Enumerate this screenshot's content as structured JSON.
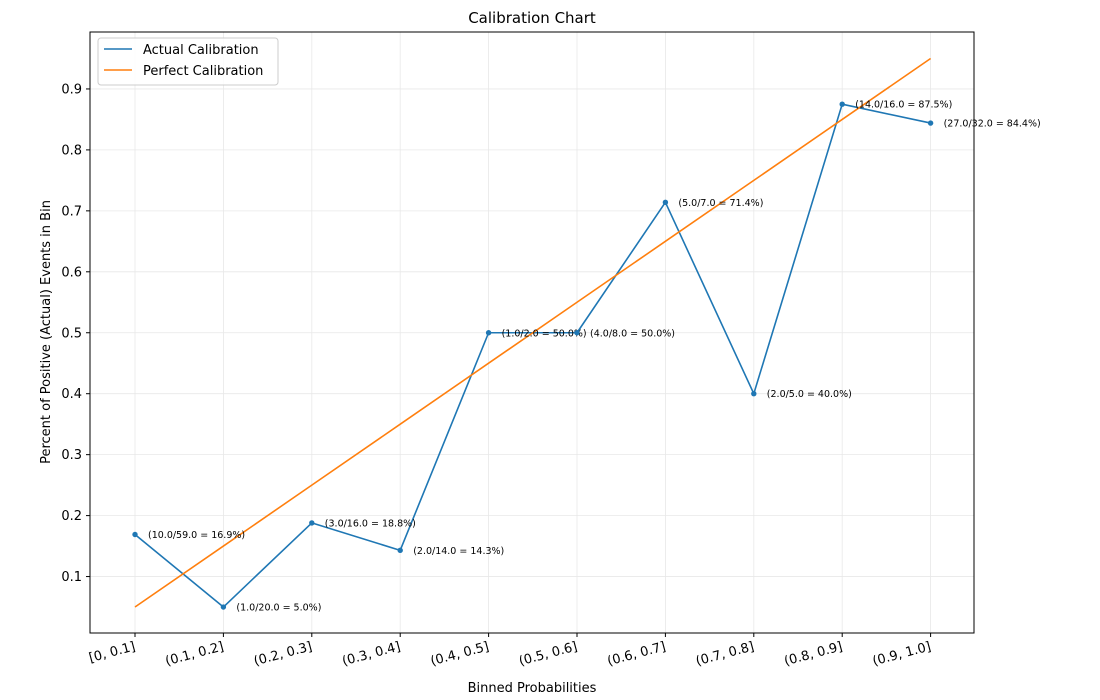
{
  "chart_data": {
    "type": "line",
    "title": "Calibration Chart",
    "xlabel": "Binned Probabilities",
    "ylabel": "Percent of Positive (Actual) Events in Bin",
    "categories": [
      "[0, 0.1]",
      "(0.1, 0.2]",
      "(0.2, 0.3]",
      "(0.3, 0.4]",
      "(0.4, 0.5]",
      "(0.5, 0.6]",
      "(0.6, 0.7]",
      "(0.7, 0.8]",
      "(0.8, 0.9]",
      "(0.9, 1.0]"
    ],
    "ylim": [
      0.0,
      1.0
    ],
    "yticks": [
      "0.1",
      "0.2",
      "0.3",
      "0.4",
      "0.5",
      "0.6",
      "0.7",
      "0.8",
      "0.9"
    ],
    "grid": true,
    "legend_position": "top-left",
    "series": [
      {
        "name": "Actual Calibration",
        "color": "#1f77b4",
        "markers": true,
        "values": [
          0.169,
          0.05,
          0.188,
          0.143,
          0.5,
          0.5,
          0.714,
          0.4,
          0.875,
          0.844
        ],
        "labels": [
          "(10.0/59.0 = 16.9%)",
          "(1.0/20.0 = 5.0%)",
          "(3.0/16.0 = 18.8%)",
          "(2.0/14.0 = 14.3%)",
          "(1.0/2.0 = 50.0%)",
          "(4.0/8.0 = 50.0%)",
          "(5.0/7.0 = 71.4%)",
          "(2.0/5.0 = 40.0%)",
          "(14.0/16.0 = 87.5%)",
          "(27.0/32.0 = 84.4%)"
        ]
      },
      {
        "name": "Perfect Calibration",
        "color": "#ff7f0e",
        "markers": false,
        "values": [
          0.05,
          0.15,
          0.25,
          0.35,
          0.45,
          0.55,
          0.65,
          0.75,
          0.85,
          0.95
        ]
      }
    ]
  }
}
